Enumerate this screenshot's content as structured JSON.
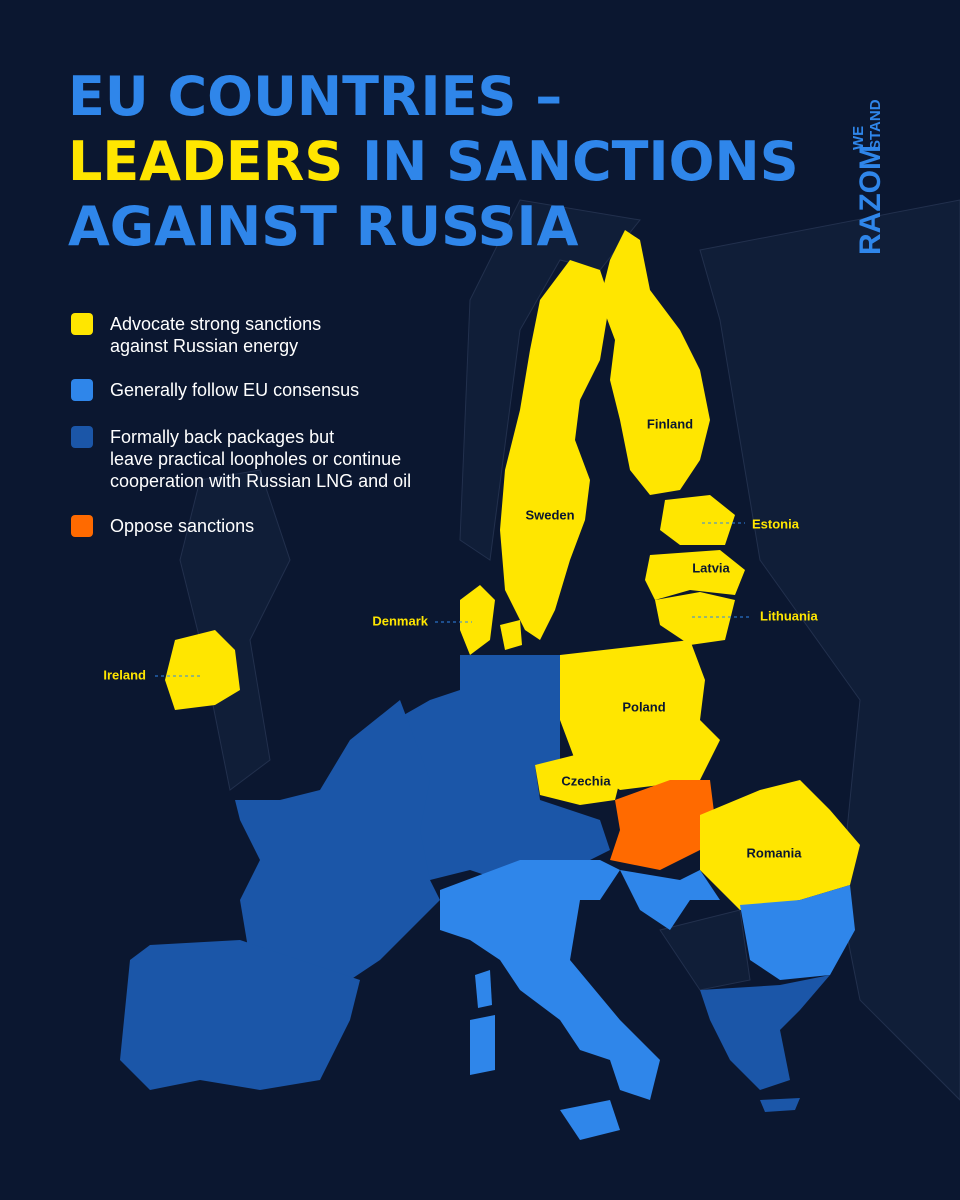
{
  "title": {
    "line1": "EU COUNTRIES –",
    "line2_highlight": "LEADERS",
    "line2_rest": "IN SANCTIONS",
    "line3": "AGAINST RUSSIA"
  },
  "logo": {
    "main": "RAZOM",
    "top": "WE",
    "bottom": "STAND"
  },
  "legend": [
    {
      "lines": [
        "Advocate strong sanctions",
        "against Russian energy"
      ],
      "color": "#ffe600"
    },
    {
      "lines": [
        "Generally follow EU consensus"
      ],
      "color": "#2f86ea"
    },
    {
      "lines": [
        "Formally back packages but",
        "leave practical loopholes or continue",
        "cooperation with Russian LNG and oil"
      ],
      "color": "#1b56a8"
    },
    {
      "lines": [
        "Oppose sanctions"
      ],
      "color": "#ff6a00"
    }
  ],
  "countries": [
    "Finland",
    "Sweden",
    "Estonia",
    "Latvia",
    "Lithuania",
    "Denmark",
    "Ireland",
    "Poland",
    "Czechia",
    "Romania"
  ]
}
